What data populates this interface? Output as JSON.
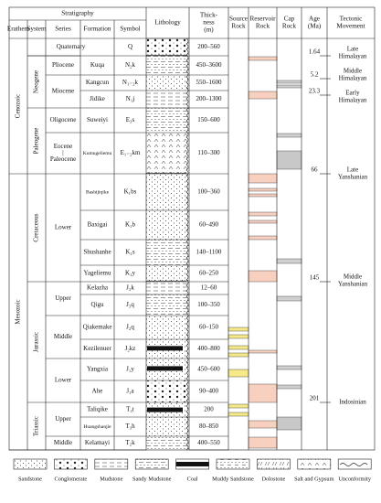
{
  "header": {
    "stratigraphy": "Stratigraphy",
    "erathem": "Erathem",
    "system": "System",
    "series": "Series",
    "formation": "Formation",
    "symbol": "Symbol",
    "lithology": "Lithology",
    "thickness": [
      "Thick-",
      "ness",
      "(m)"
    ],
    "source": [
      "Source",
      "Rock"
    ],
    "reservoir": [
      "Reservoir",
      "Rock"
    ],
    "cap": [
      "Cap",
      "Rock"
    ],
    "age": [
      "Age",
      "(Ma)"
    ],
    "tectonic": [
      "Tectonic",
      "Movement"
    ]
  },
  "erathems": [
    "Cenozoic",
    "Mesozoic"
  ],
  "systems": [
    "Neogene",
    "Paleogene",
    "Cretaceous",
    "Jurassic",
    "Triassic"
  ],
  "series": [
    [
      "Pliocene"
    ],
    [
      "Miocene"
    ],
    [
      "Oligocene"
    ],
    [
      "Eocene",
      "|",
      "Paleocene"
    ],
    [
      "Lower"
    ],
    [
      "Upper"
    ],
    [
      "Middle"
    ],
    [
      "Lower"
    ],
    [
      "Upper"
    ],
    [
      "Middle"
    ]
  ],
  "units": [
    {
      "formation": "Quaternary",
      "symbol": "Q",
      "thickness": "200–560"
    },
    {
      "formation": "Kuqa",
      "symbol": "N₂k",
      "thickness": "450–3600"
    },
    {
      "formation": "Kangcun",
      "symbol": "N₁₋₂k",
      "thickness": "550–1600"
    },
    {
      "formation": "Jidike",
      "symbol": "N₁j",
      "thickness": "200–1300"
    },
    {
      "formation": "Suweiyi",
      "symbol": "E₃s",
      "thickness": "150–600"
    },
    {
      "formation": "Kumugeliemu",
      "symbol": "E₁₋₂km",
      "thickness": "110–300"
    },
    {
      "formation": "Bashijiqike",
      "symbol": "K₁bs",
      "thickness": "100–360"
    },
    {
      "formation": "Baxigai",
      "symbol": "K₁b",
      "thickness": "60–490"
    },
    {
      "formation": "Shushanhe",
      "symbol": "K₁s",
      "thickness": "140–1100"
    },
    {
      "formation": "Yageliemu",
      "symbol": "K₁y",
      "thickness": "60–250"
    },
    {
      "formation": "Kelazha",
      "symbol": "J₃k",
      "thickness": "12–60"
    },
    {
      "formation": "Qigu",
      "symbol": "J₃q",
      "thickness": "100–350"
    },
    {
      "formation": "Qiakemake",
      "symbol": "J₂q",
      "thickness": "60–150"
    },
    {
      "formation": "Kezilenuer",
      "symbol": "J₂kz",
      "thickness": "400–800"
    },
    {
      "formation": "Yangxia",
      "symbol": "J₁y",
      "thickness": "450–600"
    },
    {
      "formation": "Ahe",
      "symbol": "J₁a",
      "thickness": "90–400"
    },
    {
      "formation": "Taliqike",
      "symbol": "T₃t",
      "thickness": "200"
    },
    {
      "formation": "Huangshanjie",
      "symbol": "T₃h",
      "thickness": "80–850"
    },
    {
      "formation": "Kelamayi",
      "symbol": "T₂k",
      "thickness": "400–550"
    }
  ],
  "ages": [
    1.64,
    5.2,
    23.3,
    66,
    145,
    201
  ],
  "tectonic": [
    [
      "Late",
      "Himalayan"
    ],
    [
      "Middle",
      "Himalayan"
    ],
    [
      "Early",
      "Himalayan"
    ],
    [
      "Late",
      "Yanshanian"
    ],
    [
      "Middle",
      "Yanshanian"
    ],
    [
      "Indosinian"
    ]
  ],
  "legend": [
    "Sandstone",
    "Conglomerate",
    "Mudstone",
    "Sandy Mudstone",
    "Coal",
    "Muddy Sandstone",
    "Dolostone",
    "Salt and Gypsum",
    "Unconformity"
  ]
}
